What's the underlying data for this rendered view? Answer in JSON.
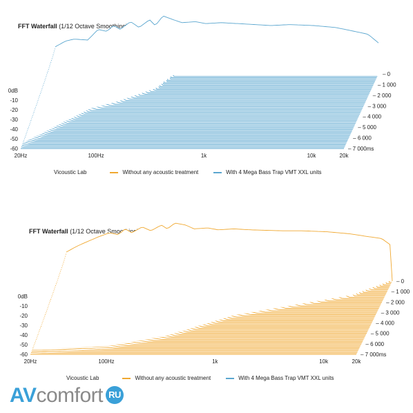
{
  "chart_data": [
    {
      "type": "line",
      "title": "FFT Waterfall",
      "subtitle": "(1/12 Octave Smoothing)",
      "color": "#5aa6cf",
      "x_ticks": [
        "20Hz",
        "100Hz",
        "1k",
        "10k",
        "20k"
      ],
      "x_tick_values": [
        20,
        100,
        1000,
        10000,
        20000
      ],
      "y_ticks": [
        "0dB",
        "-10",
        "-20",
        "-30",
        "-40",
        "-50",
        "-60"
      ],
      "ylim": [
        -60,
        0
      ],
      "time_ticks": [
        "0",
        "1 000",
        "2 000",
        "3 000",
        "4 000",
        "5 000",
        "6 000",
        "7 000ms"
      ],
      "time_range_ms": [
        0,
        7000
      ],
      "slices": 60,
      "front_curve": [
        {
          "f": 20,
          "db": -32
        },
        {
          "f": 25,
          "db": -26
        },
        {
          "f": 30,
          "db": -24
        },
        {
          "f": 40,
          "db": -25
        },
        {
          "f": 50,
          "db": -14
        },
        {
          "f": 60,
          "db": -16
        },
        {
          "f": 70,
          "db": -10
        },
        {
          "f": 80,
          "db": -14
        },
        {
          "f": 100,
          "db": -6
        },
        {
          "f": 120,
          "db": -12
        },
        {
          "f": 150,
          "db": -4
        },
        {
          "f": 170,
          "db": -10
        },
        {
          "f": 200,
          "db": 0
        },
        {
          "f": 250,
          "db": -4
        },
        {
          "f": 300,
          "db": -7
        },
        {
          "f": 400,
          "db": -6
        },
        {
          "f": 500,
          "db": -8
        },
        {
          "f": 700,
          "db": -7
        },
        {
          "f": 1000,
          "db": -8
        },
        {
          "f": 2000,
          "db": -10
        },
        {
          "f": 3000,
          "db": -9
        },
        {
          "f": 5000,
          "db": -10
        },
        {
          "f": 8000,
          "db": -12
        },
        {
          "f": 12000,
          "db": -16
        },
        {
          "f": 16000,
          "db": -19
        },
        {
          "f": 20000,
          "db": -28
        }
      ],
      "decay_ms_estimate": [
        {
          "f": 20,
          "ms": 7000
        },
        {
          "f": 60,
          "ms": 3500
        },
        {
          "f": 100,
          "ms": 2800
        },
        {
          "f": 200,
          "ms": 1500
        },
        {
          "f": 250,
          "ms": 200
        },
        {
          "f": 20000,
          "ms": 200
        }
      ],
      "legend": {
        "brand": "Vicoustic Lab",
        "items": [
          {
            "label": "Without any acoustic treatment",
            "color": "#f0a830"
          },
          {
            "label": "With 4 Mega Bass Trap VMT XXL units",
            "color": "#5aa6cf"
          }
        ]
      }
    },
    {
      "type": "line",
      "title": "FFT Waterfall",
      "subtitle": "(1/12 Octave Smoothing)",
      "color": "#f0a830",
      "x_ticks": [
        "20Hz",
        "100Hz",
        "1k",
        "10k",
        "20k"
      ],
      "x_tick_values": [
        20,
        100,
        1000,
        10000,
        20000
      ],
      "y_ticks": [
        "0dB",
        "-10",
        "-20",
        "-30",
        "-40",
        "-50",
        "-60"
      ],
      "ylim": [
        -60,
        0
      ],
      "time_ticks": [
        "0",
        "1 000",
        "2 000",
        "3 000",
        "4 000",
        "5 000",
        "6 000",
        "7 000ms"
      ],
      "time_range_ms": [
        0,
        7000
      ],
      "slices": 60,
      "front_curve": [
        {
          "f": 20,
          "db": -30
        },
        {
          "f": 25,
          "db": -24
        },
        {
          "f": 30,
          "db": -20
        },
        {
          "f": 40,
          "db": -14
        },
        {
          "f": 50,
          "db": -10
        },
        {
          "f": 60,
          "db": -12
        },
        {
          "f": 70,
          "db": -6
        },
        {
          "f": 80,
          "db": -10
        },
        {
          "f": 100,
          "db": -4
        },
        {
          "f": 120,
          "db": -8
        },
        {
          "f": 150,
          "db": -2
        },
        {
          "f": 170,
          "db": -6
        },
        {
          "f": 200,
          "db": 0
        },
        {
          "f": 250,
          "db": -2
        },
        {
          "f": 300,
          "db": -6
        },
        {
          "f": 400,
          "db": -5
        },
        {
          "f": 500,
          "db": -7
        },
        {
          "f": 700,
          "db": -6
        },
        {
          "f": 1000,
          "db": -7
        },
        {
          "f": 2000,
          "db": -8
        },
        {
          "f": 3000,
          "db": -8
        },
        {
          "f": 5000,
          "db": -9
        },
        {
          "f": 8000,
          "db": -11
        },
        {
          "f": 12000,
          "db": -14
        },
        {
          "f": 16000,
          "db": -16
        },
        {
          "f": 20000,
          "db": -24
        }
      ],
      "decay_ms_estimate": [
        {
          "f": 20,
          "ms": 7000
        },
        {
          "f": 100,
          "ms": 6500
        },
        {
          "f": 300,
          "ms": 5500
        },
        {
          "f": 1000,
          "ms": 3500
        },
        {
          "f": 10000,
          "ms": 1500
        },
        {
          "f": 20000,
          "ms": 0
        }
      ],
      "legend": {
        "brand": "Vicoustic Lab",
        "items": [
          {
            "label": "Without any acoustic treatment",
            "color": "#f0a830"
          },
          {
            "label": "With 4 Mega Bass Trap VMT XXL units",
            "color": "#5aa6cf"
          }
        ]
      }
    }
  ],
  "watermark": {
    "part1": "AV",
    "part2": "comfort",
    "part3": "RU"
  }
}
